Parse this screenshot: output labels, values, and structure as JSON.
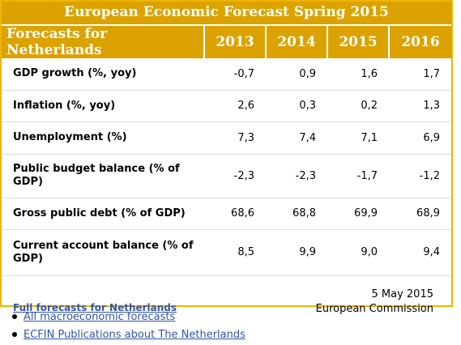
{
  "title": "European Economic Forecast Spring 2015",
  "table": {
    "header_label": "Forecasts for Netherlands",
    "years": [
      "2013",
      "2014",
      "2015",
      "2016"
    ],
    "rows": [
      {
        "label": "GDP growth (%, yoy)",
        "values": [
          "-0,7",
          "0,9",
          "1,6",
          "1,7"
        ]
      },
      {
        "label": "Inflation (%, yoy)",
        "values": [
          "2,6",
          "0,3",
          "0,2",
          "1,3"
        ]
      },
      {
        "label": "Unemployment (%)",
        "values": [
          "7,3",
          "7,4",
          "7,1",
          "6,9"
        ]
      },
      {
        "label": "Public budget balance (% of GDP)",
        "values": [
          "-2,3",
          "-2,3",
          "-1,7",
          "-1,2"
        ]
      },
      {
        "label": "Gross public debt (% of GDP)",
        "values": [
          "68,6",
          "68,8",
          "69,9",
          "68,9"
        ]
      },
      {
        "label": "Current account balance (% of GDP)",
        "values": [
          "8,5",
          "9,9",
          "9,0",
          "9,4"
        ]
      }
    ]
  },
  "footer": {
    "full_link": "Full forecasts for Netherlands",
    "date": "5 May 2015",
    "source": "European Commission"
  },
  "links": [
    "All macroeconomic forecasts",
    "ECFIN Publications about The Netherlands"
  ],
  "colors": {
    "accent": "#dba200",
    "border": "#f0b400",
    "link": "#3355aa"
  }
}
